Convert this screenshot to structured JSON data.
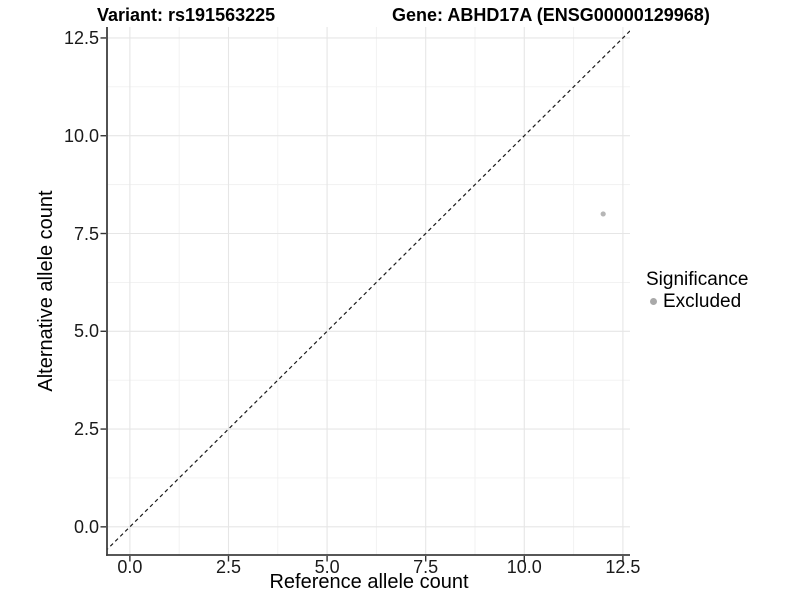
{
  "header": {
    "title_left": "Variant: rs191563225",
    "title_right": "Gene: ABHD17A (ENSG00000129968)"
  },
  "chart_data": {
    "type": "scatter",
    "title_left": "Variant: rs191563225",
    "title_right": "Gene: ABHD17A (ENSG00000129968)",
    "xlabel": "Reference allele count",
    "ylabel": "Alternative allele count",
    "xlim": [
      -0.58,
      12.68
    ],
    "ylim": [
      -0.72,
      12.78
    ],
    "x_ticks": [
      0,
      2.5,
      5,
      7.5,
      10,
      12.5
    ],
    "x_tick_labels": [
      "0.0",
      "2.5",
      "5.0",
      "7.5",
      "10.0",
      "12.5"
    ],
    "y_ticks": [
      0,
      2.5,
      5,
      7.5,
      10,
      12.5
    ],
    "y_tick_labels": [
      "0.0",
      "2.5",
      "5.0",
      "7.5",
      "10.0",
      "12.5"
    ],
    "minor_gridlines_x": [
      1.25,
      3.75,
      6.25,
      8.75,
      11.25
    ],
    "minor_gridlines_y": [
      1.25,
      3.75,
      6.25,
      8.75,
      11.25
    ],
    "grid": "major+minor",
    "identity_line": {
      "style": "dashed",
      "color": "#1a1a1a",
      "from": -1,
      "to": 14
    },
    "series": [
      {
        "name": "Excluded",
        "color": "#b6b6b6",
        "points": [
          [
            12,
            8
          ]
        ]
      }
    ],
    "legend": {
      "title": "Significance",
      "position": "right",
      "entries": [
        {
          "label": "Excluded",
          "color": "#a9a9a9"
        }
      ]
    },
    "colors": {
      "grid_major": "#e6e6e6",
      "grid_minor": "#f1f1f1",
      "axis_line": "#3f3f3f",
      "tick_mark": "#333333",
      "background": "#ffffff"
    }
  }
}
